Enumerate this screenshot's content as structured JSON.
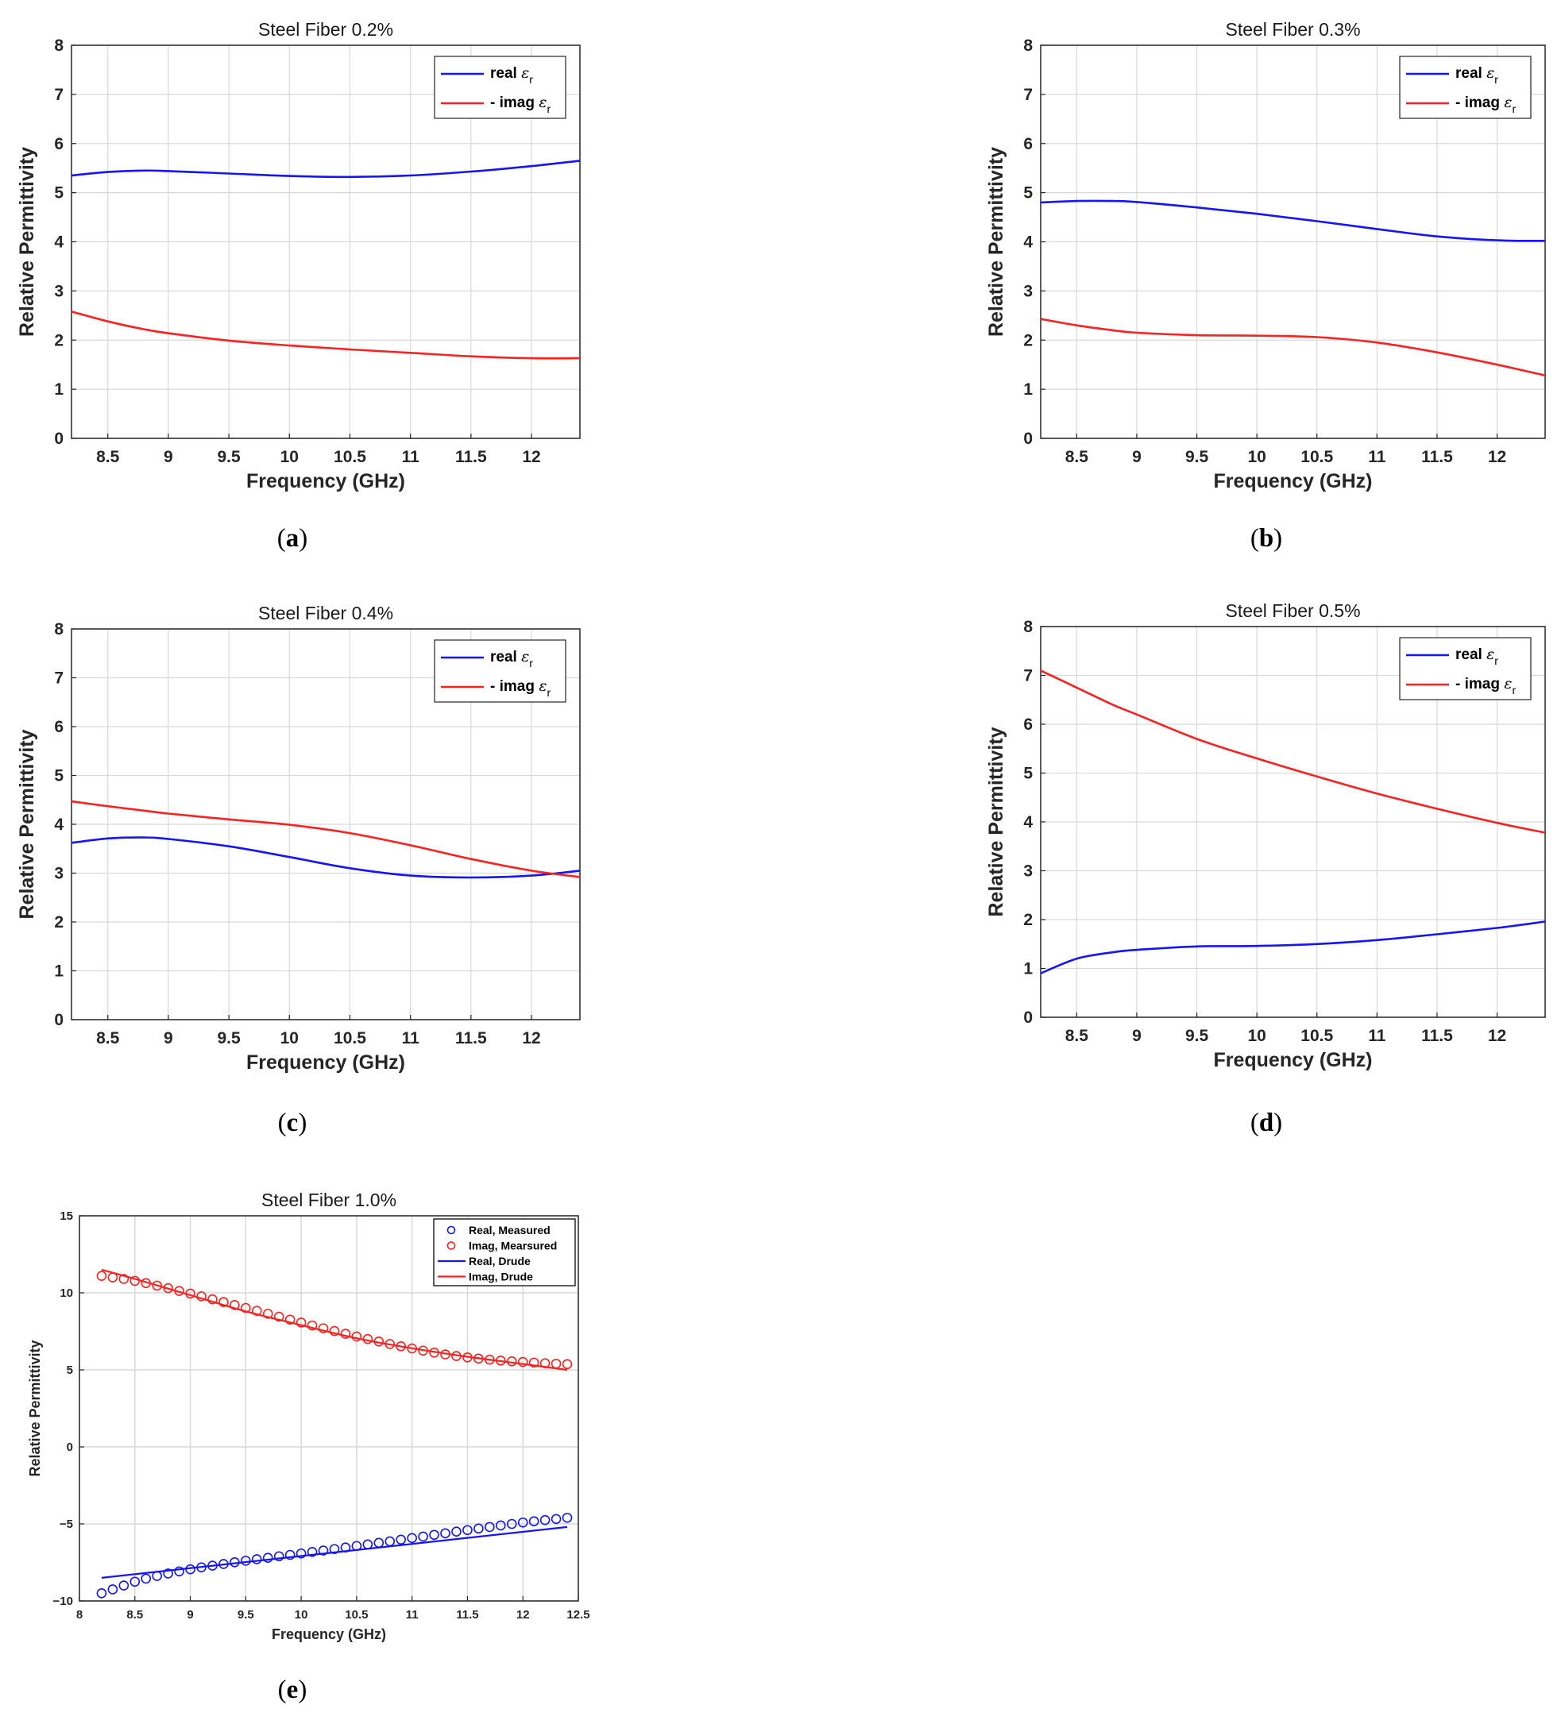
{
  "colors": {
    "real": "#1414ff",
    "imag": "#ff2020",
    "grid": "#d9d9d9",
    "axis": "#262626"
  },
  "captions": [
    {
      "label": "a"
    },
    {
      "label": "b"
    },
    {
      "label": "c"
    },
    {
      "label": "d"
    },
    {
      "label": "e"
    }
  ],
  "chart_data": [
    {
      "type": "line",
      "title": "Steel Fiber 0.2%",
      "xlabel": "Frequency (GHz)",
      "ylabel": "Relative Permittivity",
      "xlim": [
        8.2,
        12.4
      ],
      "ylim": [
        0,
        8
      ],
      "xticks": [
        "8.5",
        "9",
        "9.5",
        "10",
        "10.5",
        "11",
        "11.5",
        "12"
      ],
      "yticks": [
        "0",
        "1",
        "2",
        "3",
        "4",
        "5",
        "6",
        "7",
        "8"
      ],
      "grid": true,
      "legend_position": "top-right",
      "x": [
        8.2,
        8.5,
        8.8,
        9.0,
        9.5,
        10.0,
        10.5,
        11.0,
        11.5,
        12.0,
        12.4
      ],
      "series": [
        {
          "name": "real εr",
          "color": "blue",
          "style": "line",
          "values": [
            5.35,
            5.42,
            5.45,
            5.44,
            5.39,
            5.34,
            5.32,
            5.35,
            5.43,
            5.54,
            5.65
          ]
        },
        {
          "name": "- imag εr",
          "color": "red",
          "style": "line",
          "values": [
            2.58,
            2.38,
            2.22,
            2.14,
            1.99,
            1.89,
            1.81,
            1.74,
            1.67,
            1.63,
            1.63
          ]
        }
      ]
    },
    {
      "type": "line",
      "title": "Steel Fiber 0.3%",
      "xlabel": "Frequency (GHz)",
      "ylabel": "Relative Permittivity",
      "xlim": [
        8.2,
        12.4
      ],
      "ylim": [
        0,
        8
      ],
      "xticks": [
        "8.5",
        "9",
        "9.5",
        "10",
        "10.5",
        "11",
        "11.5",
        "12"
      ],
      "yticks": [
        "0",
        "1",
        "2",
        "3",
        "4",
        "5",
        "6",
        "7",
        "8"
      ],
      "grid": true,
      "legend_position": "top-right",
      "x": [
        8.2,
        8.5,
        8.8,
        9.0,
        9.5,
        10.0,
        10.5,
        11.0,
        11.5,
        12.0,
        12.4
      ],
      "series": [
        {
          "name": "real εr",
          "color": "blue",
          "style": "line",
          "values": [
            4.8,
            4.83,
            4.83,
            4.81,
            4.7,
            4.57,
            4.42,
            4.26,
            4.11,
            4.03,
            4.02
          ]
        },
        {
          "name": "- imag εr",
          "color": "red",
          "style": "line",
          "values": [
            2.43,
            2.3,
            2.2,
            2.15,
            2.1,
            2.09,
            2.06,
            1.95,
            1.75,
            1.5,
            1.28
          ]
        }
      ]
    },
    {
      "type": "line",
      "title": "Steel Fiber 0.4%",
      "xlabel": "Frequency (GHz)",
      "ylabel": "Relative Permittivity",
      "xlim": [
        8.2,
        12.4
      ],
      "ylim": [
        0,
        8
      ],
      "xticks": [
        "8.5",
        "9",
        "9.5",
        "10",
        "10.5",
        "11",
        "11.5",
        "12"
      ],
      "yticks": [
        "0",
        "1",
        "2",
        "3",
        "4",
        "5",
        "6",
        "7",
        "8"
      ],
      "grid": true,
      "legend_position": "top-right",
      "x": [
        8.2,
        8.5,
        8.8,
        9.0,
        9.5,
        10.0,
        10.5,
        11.0,
        11.5,
        12.0,
        12.4
      ],
      "series": [
        {
          "name": "real εr",
          "color": "blue",
          "style": "line",
          "values": [
            3.62,
            3.71,
            3.73,
            3.7,
            3.55,
            3.33,
            3.1,
            2.95,
            2.91,
            2.95,
            3.05
          ]
        },
        {
          "name": "- imag εr",
          "color": "red",
          "style": "line",
          "values": [
            4.47,
            4.37,
            4.28,
            4.22,
            4.1,
            3.99,
            3.82,
            3.57,
            3.29,
            3.05,
            2.92
          ]
        }
      ]
    },
    {
      "type": "line",
      "title": "Steel Fiber 0.5%",
      "xlabel": "Frequency (GHz)",
      "ylabel": "Relative Permittivity",
      "xlim": [
        8.2,
        12.4
      ],
      "ylim": [
        0,
        8
      ],
      "xticks": [
        "8.5",
        "9",
        "9.5",
        "10",
        "10.5",
        "11",
        "11.5",
        "12"
      ],
      "yticks": [
        "0",
        "1",
        "2",
        "3",
        "4",
        "5",
        "6",
        "7",
        "8"
      ],
      "grid": true,
      "legend_position": "top-right",
      "x": [
        8.2,
        8.5,
        8.8,
        9.0,
        9.5,
        10.0,
        10.5,
        11.0,
        11.5,
        12.0,
        12.4
      ],
      "series": [
        {
          "name": "real εr",
          "color": "blue",
          "style": "line",
          "values": [
            0.9,
            1.2,
            1.33,
            1.38,
            1.45,
            1.46,
            1.5,
            1.58,
            1.7,
            1.83,
            1.96
          ]
        },
        {
          "name": "- imag εr",
          "color": "red",
          "style": "line",
          "values": [
            7.1,
            6.75,
            6.4,
            6.2,
            5.7,
            5.3,
            4.93,
            4.58,
            4.27,
            3.98,
            3.78
          ]
        }
      ]
    },
    {
      "type": "line",
      "title": "Steel Fiber 1.0%",
      "xlabel": "Frequency (GHz)",
      "ylabel": "Relative Permittivity",
      "xlim": [
        8,
        12.5
      ],
      "ylim": [
        -10,
        15
      ],
      "xticks": [
        "8",
        "8.5",
        "9",
        "9.5",
        "10",
        "10.5",
        "11",
        "11.5",
        "12",
        "12.5"
      ],
      "yticks": [
        "−10",
        "−5",
        "0",
        "5",
        "10",
        "15"
      ],
      "grid": true,
      "legend_position": "top-right",
      "markers": {
        "x_start": 8.2,
        "x_step": 0.1,
        "count": 43,
        "real": [
          -9.5,
          -9.25,
          -9.0,
          -8.75,
          -8.55,
          -8.38,
          -8.22,
          -8.08,
          -7.95,
          -7.82,
          -7.71,
          -7.6,
          -7.49,
          -7.39,
          -7.29,
          -7.2,
          -7.1,
          -7.01,
          -6.92,
          -6.82,
          -6.73,
          -6.63,
          -6.53,
          -6.43,
          -6.33,
          -6.23,
          -6.13,
          -6.02,
          -5.92,
          -5.82,
          -5.71,
          -5.61,
          -5.5,
          -5.4,
          -5.3,
          -5.2,
          -5.1,
          -5.0,
          -4.91,
          -4.83,
          -4.75,
          -4.68,
          -4.6
        ],
        "imag": [
          11.1,
          11.0,
          10.9,
          10.78,
          10.63,
          10.47,
          10.3,
          10.12,
          9.95,
          9.77,
          9.58,
          9.4,
          9.21,
          9.02,
          8.83,
          8.64,
          8.45,
          8.26,
          8.07,
          7.88,
          7.7,
          7.52,
          7.34,
          7.17,
          7.0,
          6.84,
          6.68,
          6.53,
          6.39,
          6.25,
          6.12,
          6.0,
          5.9,
          5.81,
          5.73,
          5.66,
          5.6,
          5.55,
          5.51,
          5.47,
          5.43,
          5.4,
          5.37
        ]
      },
      "series": [
        {
          "name": "Real, Measured",
          "color": "blue",
          "style": "markers"
        },
        {
          "name": "Imag, Mearsured",
          "color": "red",
          "style": "markers"
        },
        {
          "name": "Real, Drude",
          "color": "blue",
          "style": "line",
          "x": [
            8.2,
            12.4
          ],
          "values": [
            -8.5,
            -5.2
          ]
        },
        {
          "name": "Imag, Drude",
          "color": "red",
          "style": "line",
          "x": [
            8.2,
            8.5,
            9.0,
            9.5,
            10.0,
            10.5,
            11.0,
            11.5,
            12.0,
            12.4
          ],
          "values": [
            11.5,
            10.9,
            9.85,
            8.8,
            7.9,
            7.05,
            6.4,
            5.85,
            5.38,
            5.0
          ]
        }
      ]
    }
  ]
}
